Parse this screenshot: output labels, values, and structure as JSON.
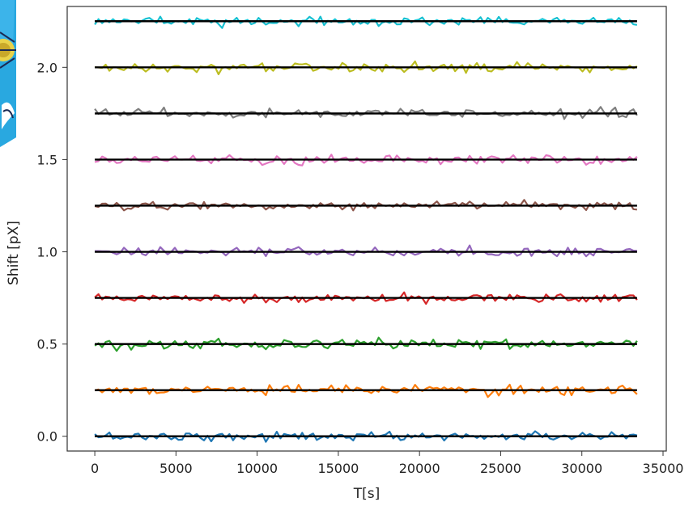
{
  "chart_data": {
    "type": "line",
    "title": "",
    "xlabel": "T[s]",
    "ylabel": "Shift [pX]",
    "xlim": [
      -1700,
      35200
    ],
    "ylim": [
      -0.08,
      2.33
    ],
    "xticks": [
      0,
      5000,
      10000,
      15000,
      20000,
      25000,
      30000,
      35000
    ],
    "yticks": [
      0.0,
      0.5,
      1.0,
      1.5,
      2.0
    ],
    "ytick_labels": [
      "0.0",
      "0.5",
      "1.0",
      "1.5",
      "2.0"
    ],
    "grid": false,
    "legend": "none",
    "x_range": [
      0,
      33400
    ],
    "series": [
      {
        "offset": 0.0,
        "color": "#1f77b4",
        "noise": 0.012
      },
      {
        "offset": 0.25,
        "color": "#ff7f0e",
        "noise": 0.012
      },
      {
        "offset": 0.5,
        "color": "#2ca02c",
        "noise": 0.013
      },
      {
        "offset": 0.75,
        "color": "#d62728",
        "noise": 0.012
      },
      {
        "offset": 1.0,
        "color": "#9467bd",
        "noise": 0.012
      },
      {
        "offset": 1.25,
        "color": "#8c564b",
        "noise": 0.011
      },
      {
        "offset": 1.5,
        "color": "#e377c2",
        "noise": 0.012
      },
      {
        "offset": 1.75,
        "color": "#7f7f7f",
        "noise": 0.012
      },
      {
        "offset": 2.0,
        "color": "#bcbd22",
        "noise": 0.013
      },
      {
        "offset": 2.25,
        "color": "#17becf",
        "noise": 0.011
      }
    ],
    "reference_lines": [
      0.0,
      0.25,
      0.5,
      0.75,
      1.0,
      1.25,
      1.5,
      1.75,
      2.0,
      2.25
    ],
    "reference_line_color": "#000000"
  },
  "decoration": {
    "left_graphic": "partial-logo-icon"
  }
}
